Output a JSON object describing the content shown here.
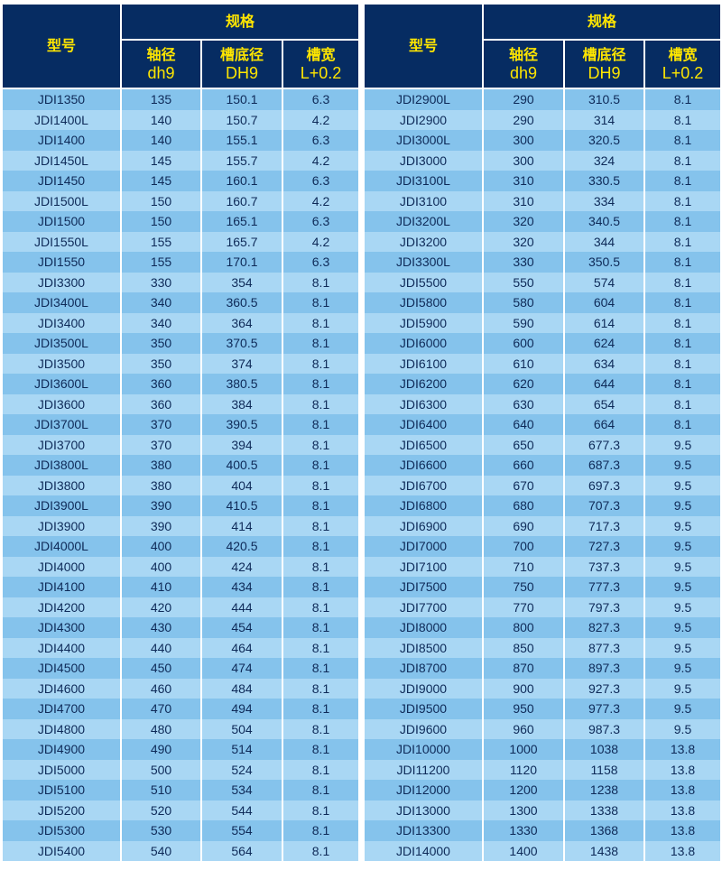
{
  "header": {
    "model": "型号",
    "spec": "规格",
    "shaft_dia": "轴径",
    "shaft_tol": "dh9",
    "groove_dia": "槽底径",
    "groove_tol": "DH9",
    "groove_width": "槽宽",
    "width_tol": "L+0.2"
  },
  "colors": {
    "header_bg": "#062c62",
    "header_text": "#ffe600",
    "row_dark": "#85c3ec",
    "row_light": "#a9d7f4",
    "cell_text": "#0e2a58"
  },
  "left_rows": [
    [
      "JDI1350",
      "135",
      "150.1",
      "6.3"
    ],
    [
      "JDI1400L",
      "140",
      "150.7",
      "4.2"
    ],
    [
      "JDI1400",
      "140",
      "155.1",
      "6.3"
    ],
    [
      "JDI1450L",
      "145",
      "155.7",
      "4.2"
    ],
    [
      "JDI1450",
      "145",
      "160.1",
      "6.3"
    ],
    [
      "JDI1500L",
      "150",
      "160.7",
      "4.2"
    ],
    [
      "JDI1500",
      "150",
      "165.1",
      "6.3"
    ],
    [
      "JDI1550L",
      "155",
      "165.7",
      "4.2"
    ],
    [
      "JDI1550",
      "155",
      "170.1",
      "6.3"
    ],
    [
      "JDI3300",
      "330",
      "354",
      "8.1"
    ],
    [
      "JDI3400L",
      "340",
      "360.5",
      "8.1"
    ],
    [
      "JDI3400",
      "340",
      "364",
      "8.1"
    ],
    [
      "JDI3500L",
      "350",
      "370.5",
      "8.1"
    ],
    [
      "JDI3500",
      "350",
      "374",
      "8.1"
    ],
    [
      "JDI3600L",
      "360",
      "380.5",
      "8.1"
    ],
    [
      "JDI3600",
      "360",
      "384",
      "8.1"
    ],
    [
      "JDI3700L",
      "370",
      "390.5",
      "8.1"
    ],
    [
      "JDI3700",
      "370",
      "394",
      "8.1"
    ],
    [
      "JDI3800L",
      "380",
      "400.5",
      "8.1"
    ],
    [
      "JDI3800",
      "380",
      "404",
      "8.1"
    ],
    [
      "JDI3900L",
      "390",
      "410.5",
      "8.1"
    ],
    [
      "JDI3900",
      "390",
      "414",
      "8.1"
    ],
    [
      "JDI4000L",
      "400",
      "420.5",
      "8.1"
    ],
    [
      "JDI4000",
      "400",
      "424",
      "8.1"
    ],
    [
      "JDI4100",
      "410",
      "434",
      "8.1"
    ],
    [
      "JDI4200",
      "420",
      "444",
      "8.1"
    ],
    [
      "JDI4300",
      "430",
      "454",
      "8.1"
    ],
    [
      "JDI4400",
      "440",
      "464",
      "8.1"
    ],
    [
      "JDI4500",
      "450",
      "474",
      "8.1"
    ],
    [
      "JDI4600",
      "460",
      "484",
      "8.1"
    ],
    [
      "JDI4700",
      "470",
      "494",
      "8.1"
    ],
    [
      "JDI4800",
      "480",
      "504",
      "8.1"
    ],
    [
      "JDI4900",
      "490",
      "514",
      "8.1"
    ],
    [
      "JDI5000",
      "500",
      "524",
      "8.1"
    ],
    [
      "JDI5100",
      "510",
      "534",
      "8.1"
    ],
    [
      "JDI5200",
      "520",
      "544",
      "8.1"
    ],
    [
      "JDI5300",
      "530",
      "554",
      "8.1"
    ],
    [
      "JDI5400",
      "540",
      "564",
      "8.1"
    ]
  ],
  "right_rows": [
    [
      "JDI2900L",
      "290",
      "310.5",
      "8.1"
    ],
    [
      "JDI2900",
      "290",
      "314",
      "8.1"
    ],
    [
      "JDI3000L",
      "300",
      "320.5",
      "8.1"
    ],
    [
      "JDI3000",
      "300",
      "324",
      "8.1"
    ],
    [
      "JDI3100L",
      "310",
      "330.5",
      "8.1"
    ],
    [
      "JDI3100",
      "310",
      "334",
      "8.1"
    ],
    [
      "JDI3200L",
      "320",
      "340.5",
      "8.1"
    ],
    [
      "JDI3200",
      "320",
      "344",
      "8.1"
    ],
    [
      "JDI3300L",
      "330",
      "350.5",
      "8.1"
    ],
    [
      "JDI5500",
      "550",
      "574",
      "8.1"
    ],
    [
      "JDI5800",
      "580",
      "604",
      "8.1"
    ],
    [
      "JDI5900",
      "590",
      "614",
      "8.1"
    ],
    [
      "JDI6000",
      "600",
      "624",
      "8.1"
    ],
    [
      "JDI6100",
      "610",
      "634",
      "8.1"
    ],
    [
      "JDI6200",
      "620",
      "644",
      "8.1"
    ],
    [
      "JDI6300",
      "630",
      "654",
      "8.1"
    ],
    [
      "JDI6400",
      "640",
      "664",
      "8.1"
    ],
    [
      "JDI6500",
      "650",
      "677.3",
      "9.5"
    ],
    [
      "JDI6600",
      "660",
      "687.3",
      "9.5"
    ],
    [
      "JDI6700",
      "670",
      "697.3",
      "9.5"
    ],
    [
      "JDI6800",
      "680",
      "707.3",
      "9.5"
    ],
    [
      "JDI6900",
      "690",
      "717.3",
      "9.5"
    ],
    [
      "JDI7000",
      "700",
      "727.3",
      "9.5"
    ],
    [
      "JDI7100",
      "710",
      "737.3",
      "9.5"
    ],
    [
      "JDI7500",
      "750",
      "777.3",
      "9.5"
    ],
    [
      "JDI7700",
      "770",
      "797.3",
      "9.5"
    ],
    [
      "JDI8000",
      "800",
      "827.3",
      "9.5"
    ],
    [
      "JDI8500",
      "850",
      "877.3",
      "9.5"
    ],
    [
      "JDI8700",
      "870",
      "897.3",
      "9.5"
    ],
    [
      "JDI9000",
      "900",
      "927.3",
      "9.5"
    ],
    [
      "JDI9500",
      "950",
      "977.3",
      "9.5"
    ],
    [
      "JDI9600",
      "960",
      "987.3",
      "9.5"
    ],
    [
      "JDI10000",
      "1000",
      "1038",
      "13.8"
    ],
    [
      "JDI11200",
      "1120",
      "1158",
      "13.8"
    ],
    [
      "JDI12000",
      "1200",
      "1238",
      "13.8"
    ],
    [
      "JDI13000",
      "1300",
      "1338",
      "13.8"
    ],
    [
      "JDI13300",
      "1330",
      "1368",
      "13.8"
    ],
    [
      "JDI14000",
      "1400",
      "1438",
      "13.8"
    ]
  ]
}
